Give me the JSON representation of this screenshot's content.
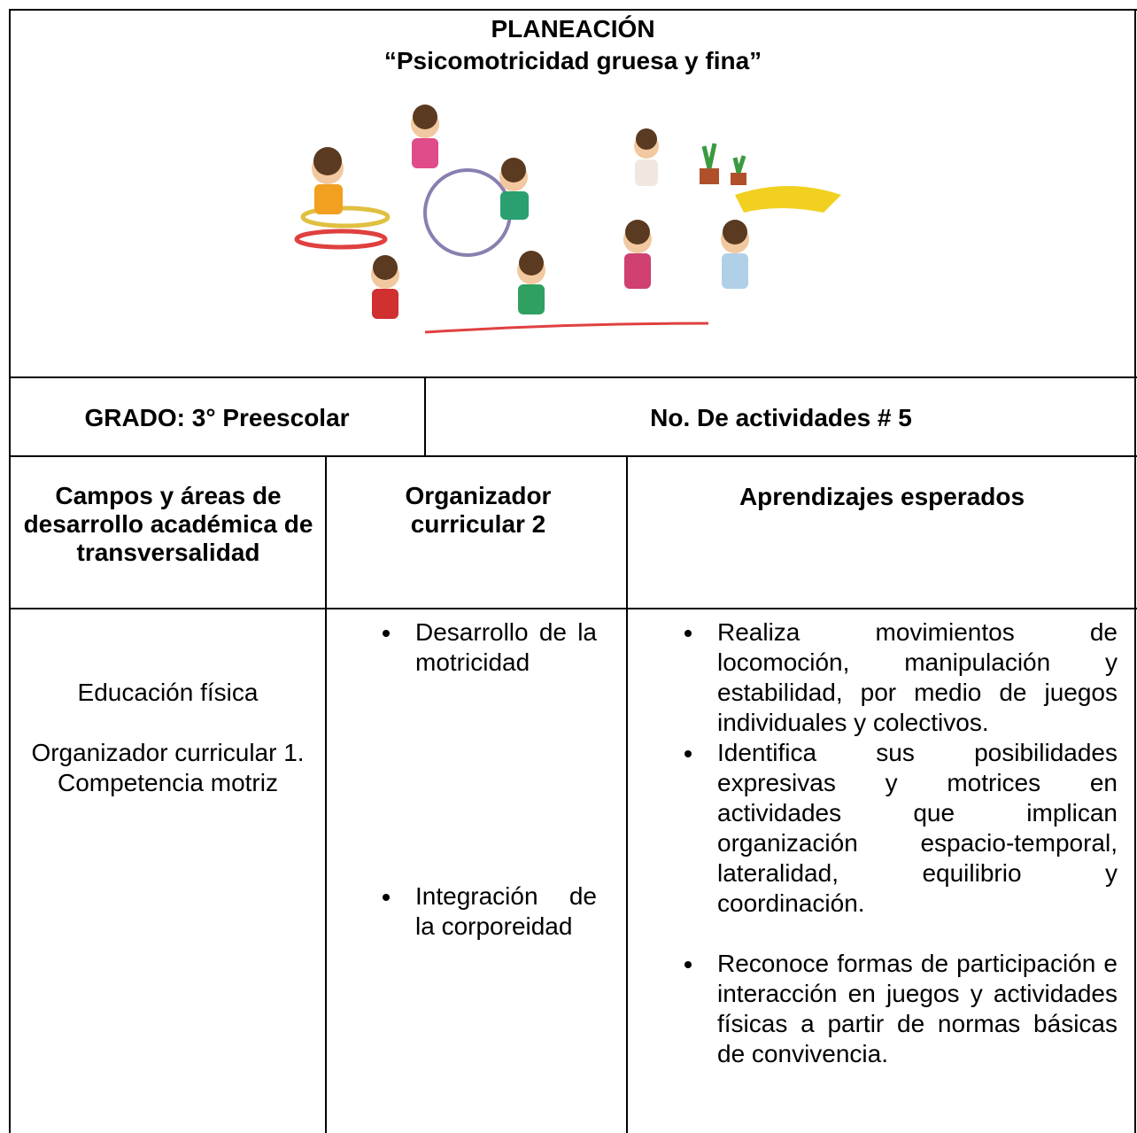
{
  "header": {
    "title": "PLANEACIÓN",
    "subtitle": "“Psicomotricidad gruesa y fina”"
  },
  "info": {
    "grade": "GRADO: 3° Preescolar",
    "activities": "No. De actividades # 5"
  },
  "table": {
    "headers": [
      "Campos y áreas de desarrollo académica de transversalidad",
      "Organizador curricular 2",
      "Aprendizajes esperados"
    ],
    "rows": [
      [
        [
          "Educación física",
          "Organizador curricular 1.",
          "Competencia motriz"
        ],
        [
          "Desarrollo de la motricidad",
          "Integración de la corporeidad"
        ],
        [
          "Realiza movimientos de locomoción, manipulación y estabilidad, por medio de juegos individuales y colectivos.",
          "Identifica sus posibilidades expresivas y motrices en actividades que implican organización espacio-temporal, lateralidad, equilibrio y coordinación.",
          "Reconoce formas de participación e interacción en juegos y actividades físicas a partir de normas básicas de convivencia."
        ]
      ]
    ]
  }
}
